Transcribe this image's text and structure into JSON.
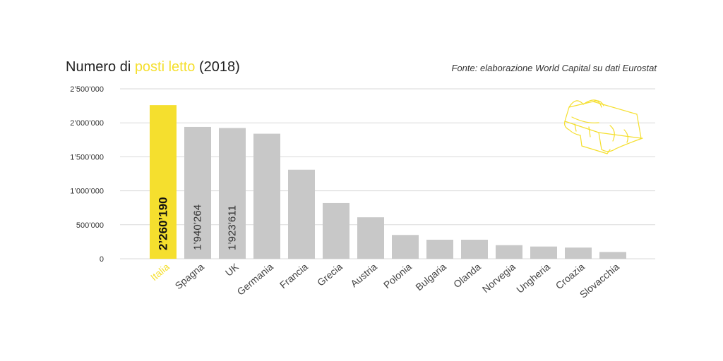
{
  "header": {
    "title_prefix": "Numero di ",
    "title_highlight": "posti letto",
    "title_suffix": " (2018)",
    "source": "Fonte: elaborazione World Capital su dati Eurostat"
  },
  "colors": {
    "highlight": "#f5df2e",
    "bar": "#c8c8c8",
    "grid": "#d9d9d9",
    "text": "#333333",
    "icon": "#f5df2e"
  },
  "decoration": {
    "icon": "bed-icon"
  },
  "chart_data": {
    "type": "bar",
    "title": "Numero di posti letto (2018)",
    "xlabel": "",
    "ylabel": "",
    "ylim": [
      0,
      2500000
    ],
    "grid": true,
    "y_ticks": [
      0,
      500000,
      1000000,
      1500000,
      2000000,
      2500000
    ],
    "y_tick_labels": [
      "0",
      "500’000",
      "1’000’000",
      "1’500’000",
      "2’000’000",
      "2’500’000"
    ],
    "categories": [
      "Italia",
      "Spagna",
      "UK",
      "Germania",
      "Francia",
      "Grecia",
      "Austria",
      "Polonia",
      "Bulgaria",
      "Olanda",
      "Norvegia",
      "Ungheria",
      "Croazia",
      "Slovacchia"
    ],
    "values": [
      2260190,
      1940264,
      1923611,
      1840000,
      1310000,
      820000,
      610000,
      350000,
      280000,
      280000,
      200000,
      180000,
      165000,
      100000
    ],
    "highlight_category": "Italia",
    "data_labels": [
      {
        "category": "Italia",
        "text": "2’260’190"
      },
      {
        "category": "Spagna",
        "text": "1’940’264"
      },
      {
        "category": "UK",
        "text": "1’923’611"
      }
    ]
  }
}
